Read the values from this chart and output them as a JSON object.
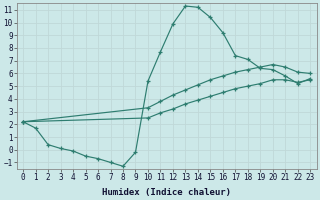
{
  "xlabel": "Humidex (Indice chaleur)",
  "ylabel": "",
  "bg_color": "#cce8e8",
  "grid_color": "#c0d8d8",
  "line_color": "#2e7d70",
  "xlim": [
    -0.5,
    23.5
  ],
  "ylim": [
    -1.5,
    11.5
  ],
  "xticks": [
    0,
    1,
    2,
    3,
    4,
    5,
    6,
    7,
    8,
    9,
    10,
    11,
    12,
    13,
    14,
    15,
    16,
    17,
    18,
    19,
    20,
    21,
    22,
    23
  ],
  "yticks": [
    -1,
    0,
    1,
    2,
    3,
    4,
    5,
    6,
    7,
    8,
    9,
    10,
    11
  ],
  "lines": [
    {
      "x": [
        0,
        1,
        2,
        3,
        4,
        5,
        6,
        7,
        8,
        9,
        10,
        11,
        12,
        13,
        14,
        15,
        16,
        17,
        18,
        19,
        20,
        21,
        22,
        23
      ],
      "y": [
        2.2,
        1.7,
        0.4,
        0.1,
        -0.1,
        -0.5,
        -0.7,
        -1.0,
        -1.3,
        -0.2,
        5.4,
        7.7,
        9.9,
        11.3,
        11.2,
        10.4,
        9.2,
        7.4,
        7.1,
        6.4,
        6.3,
        5.8,
        5.2,
        5.6
      ]
    },
    {
      "x": [
        0,
        10,
        11,
        12,
        13,
        14,
        15,
        16,
        17,
        18,
        19,
        20,
        21,
        22,
        23
      ],
      "y": [
        2.2,
        3.3,
        3.8,
        4.3,
        4.7,
        5.1,
        5.5,
        5.8,
        6.1,
        6.3,
        6.5,
        6.7,
        6.5,
        6.1,
        6.0
      ]
    },
    {
      "x": [
        0,
        10,
        11,
        12,
        13,
        14,
        15,
        16,
        17,
        18,
        19,
        20,
        21,
        22,
        23
      ],
      "y": [
        2.2,
        2.5,
        2.9,
        3.2,
        3.6,
        3.9,
        4.2,
        4.5,
        4.8,
        5.0,
        5.2,
        5.5,
        5.5,
        5.3,
        5.5
      ]
    }
  ]
}
